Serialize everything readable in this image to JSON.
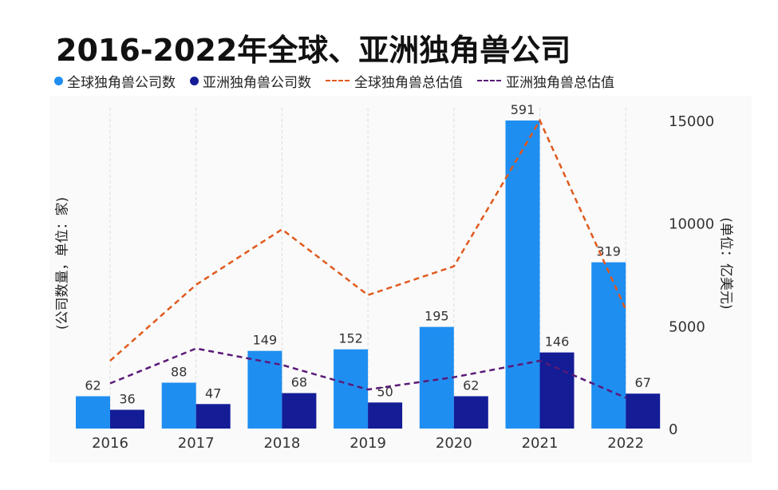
{
  "title": "2016-2022年全球、亚洲独角兽公司",
  "legend": [
    {
      "label": "全球独角兽公司数",
      "kind": "dot",
      "color": "#1f8ef1"
    },
    {
      "label": "亚洲独角兽公司数",
      "kind": "dot",
      "color": "#141c96"
    },
    {
      "label": "全球独角兽总估值",
      "kind": "dash",
      "color": "#e05a1e"
    },
    {
      "label": "亚洲独角兽总估值",
      "kind": "dash",
      "color": "#5a1a78"
    }
  ],
  "y_left_label": "(公司数量，单位：家)",
  "y_right_label": "(单位：亿美元)",
  "chart_data": {
    "type": "bar",
    "categories": [
      "2016",
      "2017",
      "2018",
      "2019",
      "2020",
      "2021",
      "2022"
    ],
    "series": [
      {
        "name": "全球独角兽公司数",
        "kind": "bar",
        "axis": "left",
        "color": "#1f8ef1",
        "values": [
          62,
          88,
          149,
          152,
          195,
          591,
          319
        ]
      },
      {
        "name": "亚洲独角兽公司数",
        "kind": "bar",
        "axis": "left",
        "color": "#141c96",
        "values": [
          36,
          47,
          68,
          50,
          62,
          146,
          67
        ]
      },
      {
        "name": "全球独角兽总估值",
        "kind": "line",
        "axis": "right",
        "color": "#e05a1e",
        "values": [
          3300,
          7000,
          9700,
          6500,
          7900,
          15000,
          5800
        ]
      },
      {
        "name": "亚洲独角兽总估值",
        "kind": "line",
        "axis": "right",
        "color": "#5a1a78",
        "values": [
          2200,
          3900,
          3100,
          1900,
          2500,
          3300,
          1500
        ]
      }
    ],
    "ylim_left": [
      0,
      591
    ],
    "ylim_right": [
      0,
      15000
    ],
    "right_ticks": [
      0,
      5000,
      10000,
      15000
    ],
    "grid": "vertical",
    "legend_position": "top"
  }
}
